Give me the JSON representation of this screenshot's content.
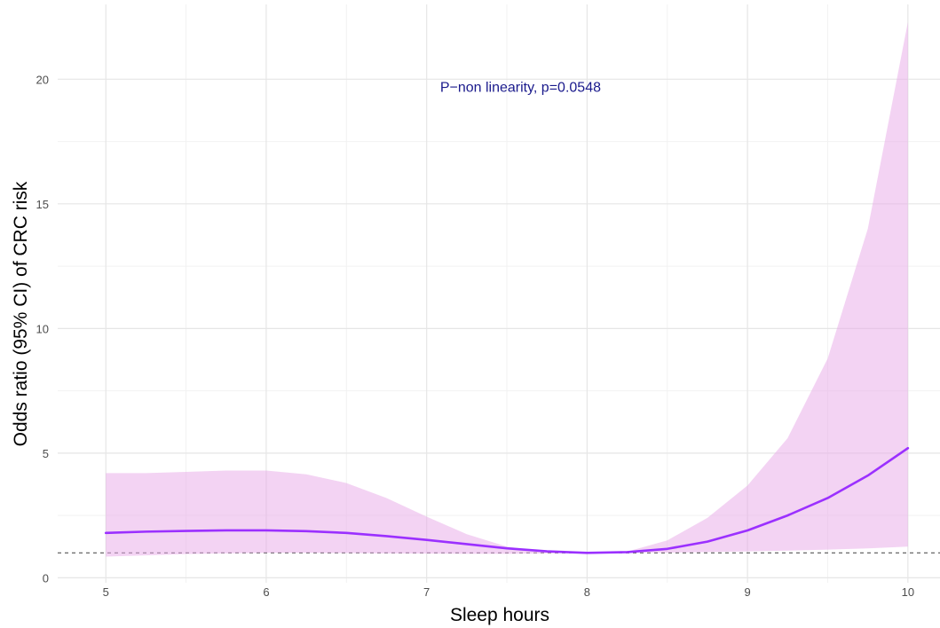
{
  "chart_data": {
    "type": "line",
    "title": "",
    "xlabel": "Sleep hours",
    "ylabel": "Odds ratio (95% CI) of CRC risk",
    "xlim": [
      4.7,
      10.2
    ],
    "ylim": [
      -0.2,
      23.0
    ],
    "x_ticks": [
      5,
      6,
      7,
      8,
      9,
      10
    ],
    "y_ticks": [
      0,
      5,
      10,
      15,
      20
    ],
    "grid": true,
    "reference_line": {
      "y": 1,
      "style": "dashed",
      "color": "#555555"
    },
    "annotation": {
      "text": "P−non linearity, p=0.0548",
      "x": 8,
      "y": 19.7,
      "color": "#1a1a8c"
    },
    "series": [
      {
        "color": "#9b30ff",
        "band_color": "#e7a8e7",
        "x": [
          5.0,
          5.25,
          5.5,
          5.75,
          6.0,
          6.25,
          6.5,
          6.75,
          7.0,
          7.25,
          7.5,
          7.75,
          8.0,
          8.25,
          8.5,
          8.75,
          9.0,
          9.25,
          9.5,
          9.75,
          10.0
        ],
        "y": [
          1.8,
          1.85,
          1.88,
          1.9,
          1.9,
          1.87,
          1.8,
          1.67,
          1.52,
          1.35,
          1.18,
          1.06,
          1.0,
          1.03,
          1.16,
          1.45,
          1.9,
          2.5,
          3.2,
          4.1,
          5.2
        ],
        "lower": [
          0.85,
          0.9,
          0.95,
          0.98,
          1.0,
          1.0,
          0.99,
          0.98,
          0.97,
          0.96,
          0.96,
          0.98,
          1.0,
          1.0,
          1.01,
          1.03,
          1.06,
          1.09,
          1.13,
          1.18,
          1.25
        ],
        "upper": [
          4.2,
          4.2,
          4.25,
          4.3,
          4.3,
          4.15,
          3.8,
          3.2,
          2.45,
          1.75,
          1.25,
          1.03,
          1.0,
          1.05,
          1.5,
          2.4,
          3.7,
          5.6,
          8.8,
          14.0,
          22.3
        ]
      }
    ]
  }
}
